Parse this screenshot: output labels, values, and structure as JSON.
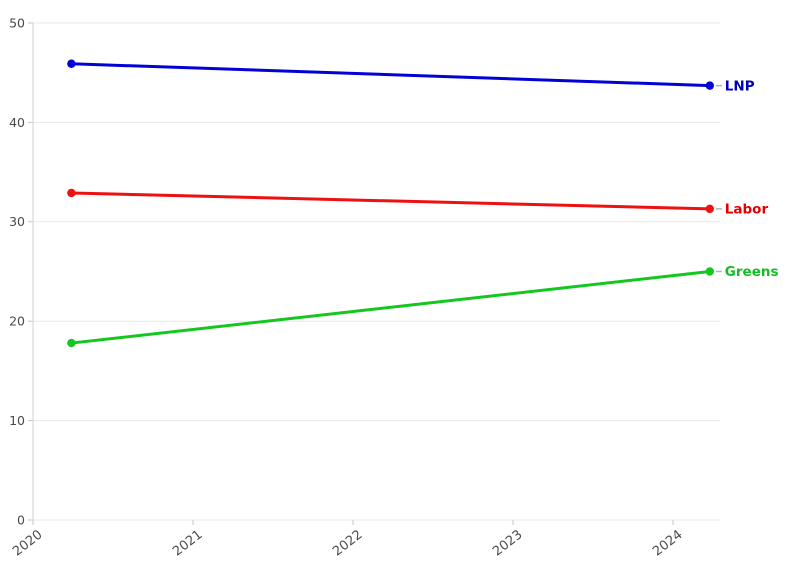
{
  "chart_data": {
    "type": "line",
    "title": "",
    "xlabel": "",
    "ylabel": "",
    "xlim": [
      2020,
      2024.3
    ],
    "ylim": [
      0,
      50
    ],
    "x_ticks": [
      2020,
      2021,
      2022,
      2023,
      2024
    ],
    "x_tick_labels": [
      "2020",
      "2021",
      "2022",
      "2023",
      "2024"
    ],
    "y_ticks": [
      0,
      10,
      20,
      30,
      40,
      50
    ],
    "y_tick_labels": [
      "0",
      "10",
      "20",
      "30",
      "40",
      "50"
    ],
    "grid": "horizontal",
    "legend_position": "end-of-line-labels",
    "series": [
      {
        "name": "LNP",
        "color": "#0202d6",
        "label_color": "#0000bb",
        "x": [
          2020.24,
          2024.23
        ],
        "values": [
          45.9,
          43.7
        ]
      },
      {
        "name": "Labor",
        "color": "#ed1111",
        "label_color": "#e30000",
        "x": [
          2020.24,
          2024.23
        ],
        "values": [
          32.9,
          31.3
        ]
      },
      {
        "name": "Greens",
        "color": "#14c71f",
        "label_color": "#10bf22",
        "x": [
          2020.24,
          2024.23
        ],
        "values": [
          17.8,
          25.0
        ]
      }
    ]
  },
  "style_colors": {
    "background": "#ffffff",
    "grid": "#e8e8e8",
    "axis": "#d2d2d2",
    "tick": "#c6c6c6",
    "tick_label": "#4a4a4a",
    "leader": "#b0b0b0"
  }
}
